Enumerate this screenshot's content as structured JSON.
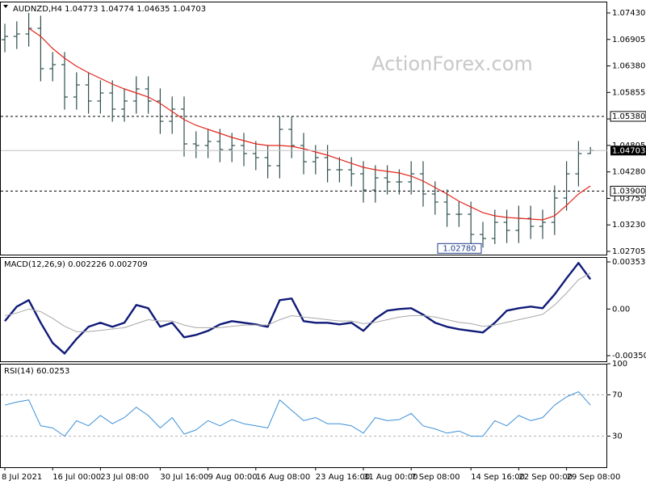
{
  "chart_data": [
    {
      "type": "ohlc",
      "title": "AUDNZD,H4  1.04773 1.04774 1.04635 1.04703",
      "watermark": "ActionForex.com",
      "color": "#2f4f4f",
      "categories": [
        "8 Jul 2021",
        null,
        null,
        null,
        "16 Jul 00:00",
        null,
        null,
        null,
        "23 Jul 08:00",
        null,
        null,
        null,
        null,
        "30 Jul 16:00",
        null,
        null,
        null,
        "9 Aug 00:00",
        null,
        null,
        null,
        "16 Aug 08:00",
        null,
        null,
        null,
        null,
        "23 Aug 16:00",
        null,
        null,
        null,
        "31 Aug 00:00",
        null,
        null,
        null,
        "7 Sep 08:00",
        null,
        null,
        null,
        null,
        "14 Sep 16:00",
        null,
        null,
        null,
        "22 Sep 00:00",
        null,
        null,
        null,
        "29 Sep 08:00",
        null,
        null
      ],
      "open": [
        1.069,
        1.06965,
        1.07013,
        1.07125,
        1.06325,
        1.06405,
        1.05764,
        1.06004,
        1.05684,
        1.05844,
        1.05524,
        1.05684,
        1.05924,
        1.05684,
        1.05283,
        1.05524,
        1.04835,
        1.04803,
        1.04883,
        1.04723,
        1.04803,
        1.04643,
        1.04563,
        1.04402,
        1.05123,
        1.04803,
        1.04482,
        1.04563,
        1.04322,
        1.04322,
        1.04242,
        1.03922,
        1.04162,
        1.04082,
        1.04082,
        1.04242,
        1.03842,
        1.03682,
        1.03441,
        1.03441,
        1.03041,
        1.02961,
        1.03281,
        1.03121,
        1.03361,
        1.03201,
        1.03281,
        1.03762,
        1.04242,
        1.04643
      ],
      "high": [
        1.07215,
        1.07263,
        1.0743,
        1.07375,
        1.06655,
        1.06655,
        1.06254,
        1.06254,
        1.06094,
        1.06094,
        1.05934,
        1.06174,
        1.06174,
        1.05934,
        1.05774,
        1.05774,
        1.05085,
        1.05133,
        1.05133,
        1.05053,
        1.05053,
        1.04893,
        1.04813,
        1.0538,
        1.05373,
        1.05053,
        1.04813,
        1.04813,
        1.04572,
        1.04572,
        1.04492,
        1.04412,
        1.04412,
        1.04332,
        1.04492,
        1.04492,
        1.04092,
        1.03932,
        1.03691,
        1.03691,
        1.03291,
        1.03531,
        1.03531,
        1.03611,
        1.03611,
        1.03531,
        1.04012,
        1.04492,
        1.04893,
        1.04774
      ],
      "low": [
        1.0665,
        1.06715,
        1.06763,
        1.06075,
        1.06075,
        1.05514,
        1.05514,
        1.05434,
        1.05434,
        1.05274,
        1.05274,
        1.05434,
        1.05434,
        1.05033,
        1.05033,
        1.04585,
        1.04553,
        1.04553,
        1.04473,
        1.04473,
        1.04393,
        1.04313,
        1.04152,
        1.04152,
        1.04553,
        1.04232,
        1.04232,
        1.04072,
        1.04072,
        1.03992,
        1.03672,
        1.03672,
        1.03832,
        1.03832,
        1.03832,
        1.03592,
        1.03432,
        1.03191,
        1.03191,
        1.02791,
        1.0278,
        1.0285,
        1.02871,
        1.02871,
        1.02951,
        1.02951,
        1.03031,
        1.03512,
        1.03992,
        1.04635
      ],
      "close": [
        1.06965,
        1.07013,
        1.07125,
        1.06325,
        1.06405,
        1.05764,
        1.06004,
        1.05684,
        1.05844,
        1.05524,
        1.05684,
        1.05924,
        1.05684,
        1.05283,
        1.05524,
        1.04835,
        1.04803,
        1.04883,
        1.04723,
        1.04803,
        1.04643,
        1.04563,
        1.04402,
        1.05123,
        1.04803,
        1.04482,
        1.04563,
        1.04322,
        1.04322,
        1.04242,
        1.03922,
        1.04162,
        1.04082,
        1.04082,
        1.04242,
        1.03842,
        1.03682,
        1.03441,
        1.03441,
        1.03041,
        1.02961,
        1.03281,
        1.03121,
        1.03361,
        1.03201,
        1.03281,
        1.03762,
        1.04242,
        1.04643,
        1.04703
      ],
      "ma": {
        "color": "#e3261c",
        "values": [
          null,
          null,
          1.07125,
          1.06965,
          1.06725,
          1.06533,
          1.06373,
          1.06244,
          1.06132,
          1.0602,
          1.05924,
          1.05844,
          1.05764,
          1.05636,
          1.05476,
          1.05315,
          1.05203,
          1.05123,
          1.05043,
          1.04963,
          1.04899,
          1.04835,
          1.04803,
          1.04803,
          1.04787,
          1.04739,
          1.04675,
          1.04611,
          1.0453,
          1.0445,
          1.0437,
          1.04322,
          1.0429,
          1.04258,
          1.04194,
          1.04098,
          1.0397,
          1.03842,
          1.03698,
          1.03585,
          1.03473,
          1.03409,
          1.03377,
          1.03361,
          1.03345,
          1.03329,
          1.03409,
          1.03618,
          1.03842,
          1.04002
        ]
      },
      "ylim": [
        1.02641,
        1.07654
      ],
      "yticks": [
        {
          "value": 1.0743,
          "label": "1.07430"
        },
        1.06905,
        {
          "value": 1.0638,
          "label": "1.06380"
        },
        1.05855,
        {
          "value": 1.0533,
          "label": "1.05330"
        },
        1.04805,
        {
          "value": 1.0428,
          "label": "1.04280"
        },
        1.03755,
        {
          "value": 1.0323,
          "label": "1.03230"
        },
        1.02705
      ],
      "levels": [
        {
          "value": 1.0538,
          "label": "1.05380"
        },
        {
          "value": 1.039,
          "label": "1.03900"
        }
      ],
      "annotations": [
        {
          "value": 1.0278,
          "label": "1.02780"
        }
      ]
    },
    {
      "type": "line",
      "title": "MACD(12,26,9) 0.002226 0.002709",
      "series": [
        {
          "color": "#0f1a78",
          "values": [
            -0.000911,
            0.000182,
            0.000668,
            -0.001032,
            -0.00255,
            -0.003339,
            -0.002246,
            -0.001336,
            -0.001032,
            -0.001336,
            -0.001032,
            0.000304,
            6.1e-05,
            -0.001336,
            -0.001032,
            -0.002125,
            -0.001943,
            -0.001639,
            -0.001153,
            -0.000911,
            -0.001032,
            -0.001153,
            -0.001336,
            0.000668,
            0.000789,
            -0.000911,
            -0.001032,
            -0.001032,
            -0.001153,
            -0.001032,
            -0.001639,
            -0.000728,
            -0.000121,
            0,
            6.1e-05,
            -0.000425,
            -0.001032,
            -0.001336,
            -0.001518,
            -0.001639,
            -0.00176,
            -0.001032,
            -0.000121,
            6.1e-05,
            0.000182,
            6.1e-05,
            0.001093,
            0.002307,
            0.00346,
            0.002226
          ]
        },
        {
          "color": "#a8a8a8",
          "values": [
            -0.0005,
            -0.0003,
            0,
            -0.0002,
            -0.0007,
            -0.0013,
            -0.0017,
            -0.0017,
            -0.0016,
            -0.0015,
            -0.0014,
            -0.0011,
            -0.0008,
            -0.0009,
            -0.0009,
            -0.0012,
            -0.0014,
            -0.0014,
            -0.0014,
            -0.0013,
            -0.0012,
            -0.0012,
            -0.0012,
            -0.0008,
            -0.0005,
            -0.0006,
            -0.0007,
            -0.0008,
            -0.0009,
            -0.0009,
            -0.0011,
            -0.001,
            -0.0008,
            -0.0006,
            -0.0005,
            -0.0005,
            -0.0006,
            -0.0008,
            -0.001,
            -0.0011,
            -0.0013,
            -0.0012,
            -0.001,
            -0.0008,
            -0.0006,
            -0.0004,
            0.0003,
            0.0012,
            0.0022,
            0.002709
          ]
        }
      ],
      "ylim": [
        -0.003928,
        0.003903
      ],
      "yticks": [
        0.003539,
        {
          "value": 0,
          "label": "0.00"
        },
        -0.003503
      ]
    },
    {
      "type": "line",
      "title": "RSI(14) 60.0253",
      "series": [
        {
          "color": "#3b8fd8",
          "values": [
            60,
            63,
            65,
            40,
            38,
            30,
            45,
            40,
            50,
            42,
            48,
            58,
            50,
            38,
            48,
            32,
            36,
            45,
            40,
            46,
            42,
            40,
            38,
            65,
            55,
            45,
            48,
            42,
            42,
            40,
            33,
            48,
            45,
            46,
            52,
            40,
            37,
            33,
            35,
            30,
            30,
            45,
            40,
            50,
            45,
            48,
            60,
            68,
            73,
            60.0253
          ]
        }
      ],
      "ylim": [
        0,
        100
      ],
      "yticks": [
        100,
        70,
        30
      ],
      "levels": [
        70,
        30
      ]
    }
  ]
}
